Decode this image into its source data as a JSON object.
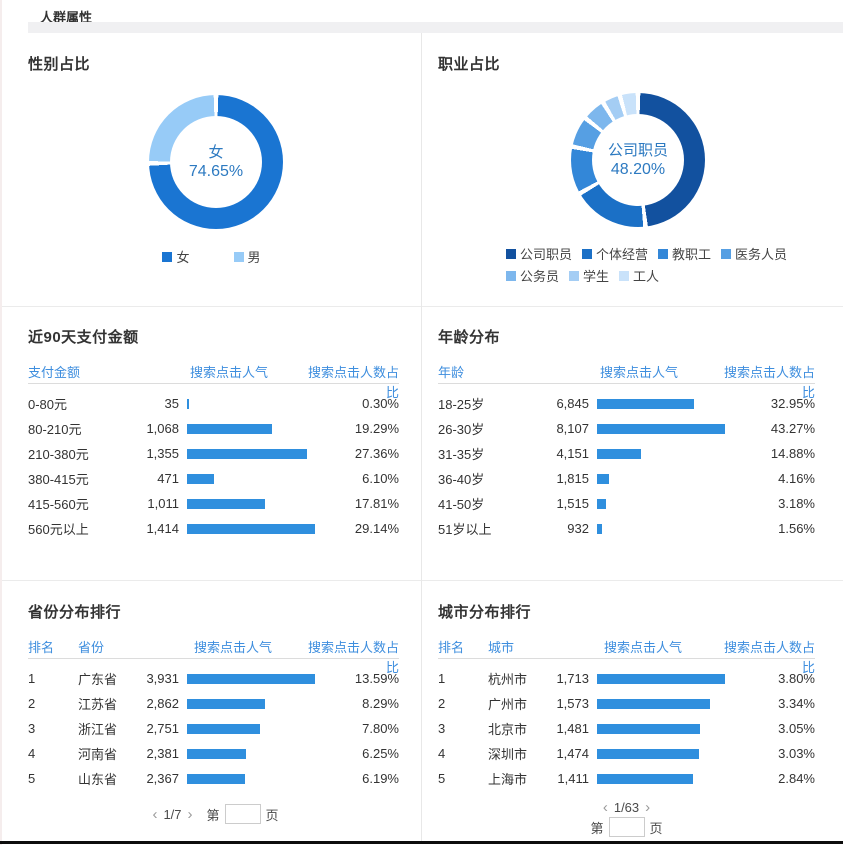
{
  "page_title": "人群属性",
  "colors": {
    "accent": "#2f8fde",
    "link": "#3e8ede",
    "divider": "#e8e8e8",
    "band": "#f0f0f2",
    "bottom_bar": "#0d0d0d",
    "donut_center_text": "#2d7ac1"
  },
  "pagination": {
    "arrows": {
      "prev": "‹",
      "next": "›"
    },
    "jump_prefix": "第",
    "jump_suffix": "页",
    "jump_value": "",
    "province": {
      "current": "1/7"
    },
    "city": {
      "current": "1/63"
    }
  },
  "chart_data": [
    {
      "id": "gender_donut",
      "type": "pie",
      "title": "性别占比",
      "center_label": {
        "line1": "女",
        "line2": "74.65%"
      },
      "legend_position": "bottom",
      "series": [
        {
          "name": "女",
          "value": 74.65,
          "color": "#1a75d2"
        },
        {
          "name": "男",
          "value": 25.35,
          "color": "#97cbf7"
        }
      ]
    },
    {
      "id": "occupation_donut",
      "type": "pie",
      "title": "职业占比",
      "center_label": {
        "line1": "公司职员",
        "line2": "48.20%"
      },
      "legend_position": "bottom",
      "series": [
        {
          "name": "公司职员",
          "value": 48.2,
          "color": "#12519f"
        },
        {
          "name": "个体经营",
          "value": 18.5,
          "color": "#1b70c6"
        },
        {
          "name": "教职工",
          "value": 11.5,
          "color": "#3387d8"
        },
        {
          "name": "医务人员",
          "value": 7.5,
          "color": "#569fe3"
        },
        {
          "name": "公务员",
          "value": 5.6,
          "color": "#7db7ed"
        },
        {
          "name": "学生",
          "value": 4.3,
          "color": "#a4cdf4"
        },
        {
          "name": "工人",
          "value": 4.4,
          "color": "#c9e2fa"
        }
      ]
    },
    {
      "id": "payment_table",
      "type": "table",
      "title": "近90天支付金额",
      "columns": [
        "支付金额",
        "搜索点击人气",
        "搜索点击人数占比"
      ],
      "rows": [
        {
          "label": "0-80元",
          "value": "35",
          "pct": "0.30%"
        },
        {
          "label": "80-210元",
          "value": "1,068",
          "pct": "19.29%"
        },
        {
          "label": "210-380元",
          "value": "1,355",
          "pct": "27.36%"
        },
        {
          "label": "380-415元",
          "value": "471",
          "pct": "6.10%"
        },
        {
          "label": "415-560元",
          "value": "1,011",
          "pct": "17.81%"
        },
        {
          "label": "560元以上",
          "value": "1,414",
          "pct": "29.14%"
        }
      ]
    },
    {
      "id": "age_table",
      "type": "table",
      "title": "年龄分布",
      "columns": [
        "年龄",
        "搜索点击人气",
        "搜索点击人数占比"
      ],
      "rows": [
        {
          "label": "18-25岁",
          "value": "6,845",
          "pct": "32.95%"
        },
        {
          "label": "26-30岁",
          "value": "8,107",
          "pct": "43.27%"
        },
        {
          "label": "31-35岁",
          "value": "4,151",
          "pct": "14.88%"
        },
        {
          "label": "36-40岁",
          "value": "1,815",
          "pct": "4.16%"
        },
        {
          "label": "41-50岁",
          "value": "1,515",
          "pct": "3.18%"
        },
        {
          "label": "51岁以上",
          "value": "932",
          "pct": "1.56%"
        }
      ]
    },
    {
      "id": "province_table",
      "type": "table",
      "title": "省份分布排行",
      "columns": [
        "排名",
        "省份",
        "搜索点击人气",
        "搜索点击人数占比"
      ],
      "rows": [
        {
          "rank": "1",
          "label": "广东省",
          "value": "3,931",
          "pct": "13.59%"
        },
        {
          "rank": "2",
          "label": "江苏省",
          "value": "2,862",
          "pct": "8.29%"
        },
        {
          "rank": "3",
          "label": "浙江省",
          "value": "2,751",
          "pct": "7.80%"
        },
        {
          "rank": "4",
          "label": "河南省",
          "value": "2,381",
          "pct": "6.25%"
        },
        {
          "rank": "5",
          "label": "山东省",
          "value": "2,367",
          "pct": "6.19%"
        }
      ]
    },
    {
      "id": "city_table",
      "type": "table",
      "title": "城市分布排行",
      "columns": [
        "排名",
        "城市",
        "搜索点击人气",
        "搜索点击人数占比"
      ],
      "rows": [
        {
          "rank": "1",
          "label": "杭州市",
          "value": "1,713",
          "pct": "3.80%"
        },
        {
          "rank": "2",
          "label": "广州市",
          "value": "1,573",
          "pct": "3.34%"
        },
        {
          "rank": "3",
          "label": "北京市",
          "value": "1,481",
          "pct": "3.05%"
        },
        {
          "rank": "4",
          "label": "深圳市",
          "value": "1,474",
          "pct": "3.03%"
        },
        {
          "rank": "5",
          "label": "上海市",
          "value": "1,411",
          "pct": "2.84%"
        }
      ]
    }
  ]
}
